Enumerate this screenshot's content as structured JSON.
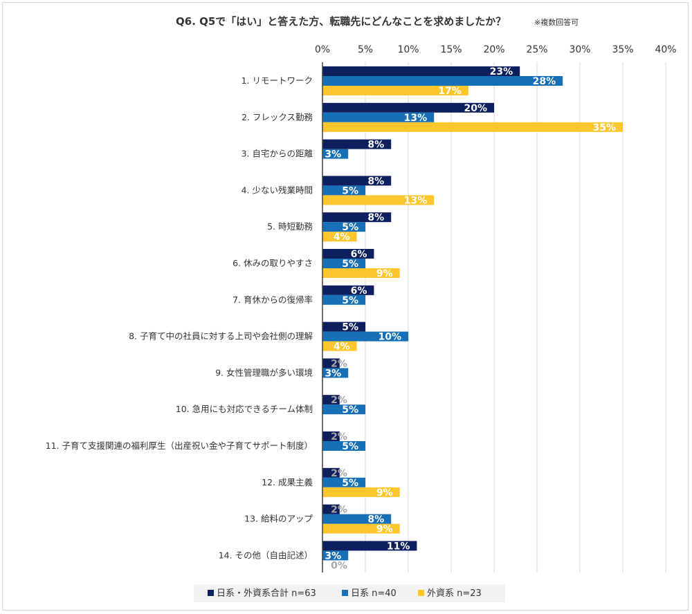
{
  "chart_data": {
    "type": "bar",
    "orientation": "horizontal",
    "title": "Q6. Q5で「はい」と答えた方、転職先にどんなことを求めましたか？",
    "subtitle": "※複数回答可",
    "categories": [
      "1. リモートワーク",
      "2. フレックス勤務",
      "3. 自宅からの距離",
      "4. 少ない残業時間",
      "5. 時短勤務",
      "6. 休みの取りやすさ",
      "7. 育休からの復帰率",
      "8. 子育て中の社員に対する上司や会社側の理解",
      "9. 女性管理職が多い環境",
      "10. 急用にも対応できるチーム体制",
      "11. 子育て支援関連の福利厚生（出産祝い金や子育てサポート制度）",
      "12. 成果主義",
      "13. 給料のアップ",
      "14. その他（自由記述）"
    ],
    "series": [
      {
        "name": "日系・外資系合計 n=63",
        "color": "#0d1f5c",
        "values": [
          23,
          20,
          8,
          8,
          8,
          6,
          6,
          5,
          2,
          2,
          2,
          2,
          2,
          11
        ],
        "labels": [
          "23%",
          "20%",
          "8%",
          "8%",
          "8%",
          "6%",
          "6%",
          "5%",
          "2%",
          "2%",
          "2%",
          "2%",
          "2%",
          "11%"
        ]
      },
      {
        "name": "日系 n=40",
        "color": "#1670b8",
        "values": [
          28,
          13,
          3,
          5,
          5,
          5,
          5,
          10,
          3,
          5,
          5,
          5,
          8,
          3
        ],
        "labels": [
          "28%",
          "13%",
          "3%",
          "5%",
          "5%",
          "5%",
          "5%",
          "10%",
          "3%",
          "5%",
          "5%",
          "5%",
          "8%",
          "3%"
        ]
      },
      {
        "name": "外資系 n=23",
        "color": "#fcc72c",
        "values": [
          17,
          35,
          0,
          13,
          4,
          9,
          0,
          4,
          0,
          0,
          0,
          9,
          9,
          0
        ],
        "labels": [
          "17%",
          "35%",
          "",
          "13%",
          "4%",
          "9%",
          "",
          "4%",
          "",
          "",
          "",
          "9%",
          "9%",
          "0%"
        ]
      }
    ],
    "x_ticks": [
      "0%",
      "5%",
      "10%",
      "15%",
      "20%",
      "25%",
      "30%",
      "35%",
      "40%"
    ],
    "xlim": [
      0,
      40
    ],
    "grid": true,
    "legend_position": "bottom"
  }
}
